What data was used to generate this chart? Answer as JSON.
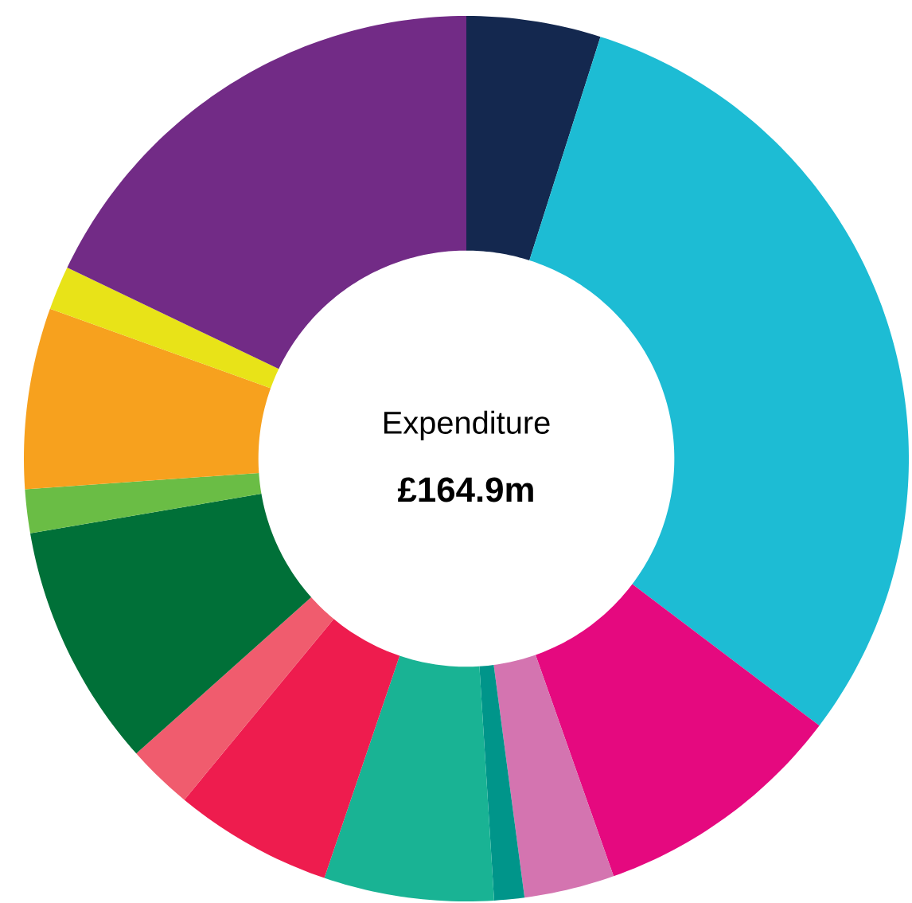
{
  "chart_data": {
    "type": "donut",
    "title": "Expenditure",
    "subtitle": "£164.9m",
    "categories": [
      null,
      null,
      null,
      null,
      null,
      null,
      null,
      null,
      null,
      null,
      null,
      null,
      null
    ],
    "values": [
      4.9,
      30.4,
      9.3,
      3.3,
      1.1,
      6.2,
      5.8,
      2.4,
      8.9,
      1.6,
      6.6,
      1.6,
      17.9
    ],
    "colors": [
      "#14284f",
      "#1dbcd4",
      "#e5097f",
      "#d474b0",
      "#00958a",
      "#19b394",
      "#ee1c4e",
      "#f05c6e",
      "#007038",
      "#6abd45",
      "#f7a11e",
      "#e8e318",
      "#722b86"
    ]
  }
}
